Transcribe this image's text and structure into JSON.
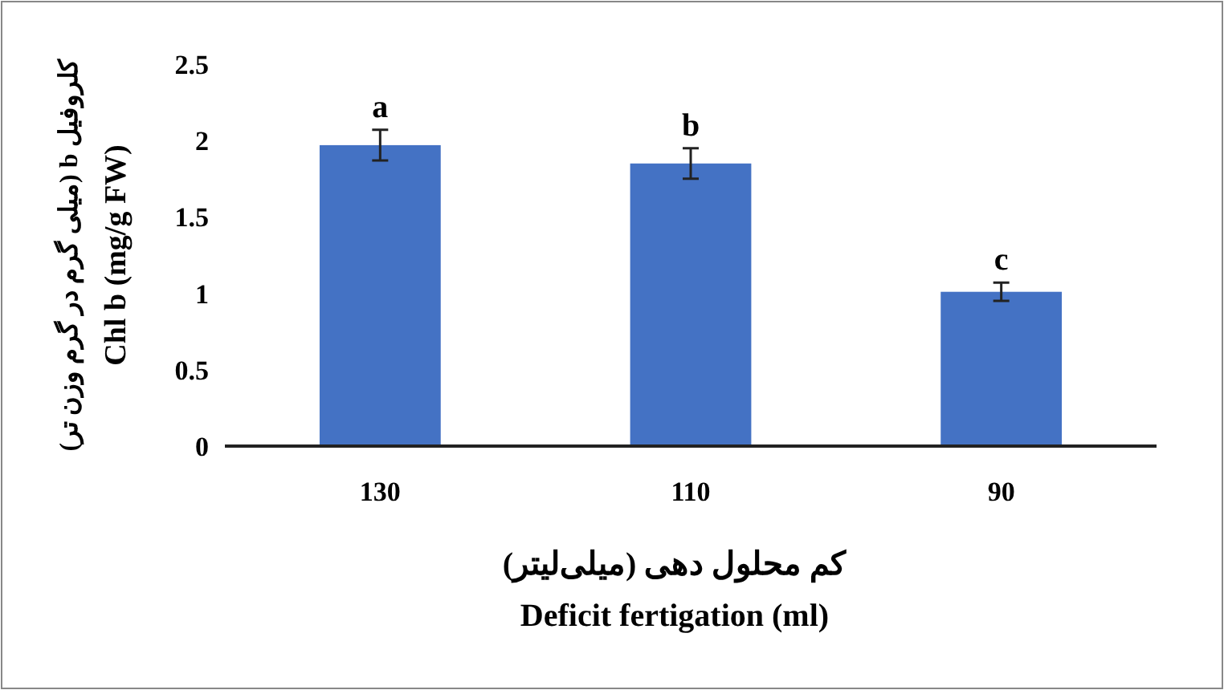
{
  "chart_data": {
    "type": "bar",
    "categories": [
      "130",
      "110",
      "90"
    ],
    "values": [
      1.97,
      1.85,
      1.01
    ],
    "errors": [
      0.1,
      0.1,
      0.06
    ],
    "color": "#4472c4",
    "ylim": [
      0,
      2.5
    ],
    "yticks": [
      0,
      0.5,
      1,
      1.5,
      2,
      2.5
    ],
    "xlabel": "کم محلول دهی (میلی‌لیتر)\nDeficit fertigation (ml)",
    "ylabel": "کلروفیل b (میلی گرم در گرم وزن تر)\nChl b (mg/g FW)",
    "annotations": [
      {
        "text": "a",
        "x": "130",
        "y": 2.07
      },
      {
        "text": "b",
        "x": "110",
        "y": 1.95
      },
      {
        "text": "c",
        "x": "90",
        "y": 1.07
      }
    ],
    "grid": false
  }
}
